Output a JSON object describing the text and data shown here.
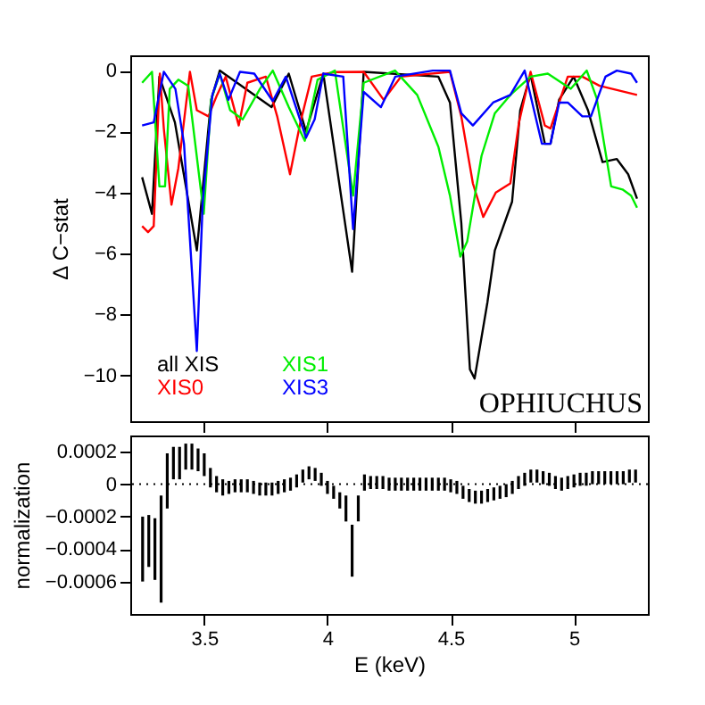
{
  "chart_data": [
    {
      "type": "line",
      "ylabel": "Δ C−stat",
      "xlim": [
        3.2,
        5.3
      ],
      "xticks": [
        3.5,
        4,
        4.5,
        5
      ],
      "ylim": [
        -11.5,
        0.5
      ],
      "yticks": [
        0,
        -2,
        -4,
        -6,
        -8,
        -10
      ],
      "tick_labels": "y",
      "grid": false,
      "legend": "bottom left",
      "line_style": "solid",
      "marker": "none",
      "annotations": [
        "OPHIUCHUS"
      ],
      "series": [
        {
          "name": "all XIS",
          "color": "#000000",
          "x": [
            3.248,
            3.288,
            3.318,
            3.381,
            3.47,
            3.528,
            3.563,
            3.773,
            3.843,
            3.913,
            3.983,
            4.1,
            4.147,
            4.45,
            4.497,
            4.543,
            4.578,
            4.597,
            4.649,
            4.679,
            4.749,
            4.782,
            4.824,
            4.882,
            4.905,
            4.94,
            4.999,
            5.057,
            5.116,
            5.174,
            5.22,
            5.256
          ],
          "values": [
            -3.5,
            -4.7,
            -0.2,
            -1.7,
            -5.9,
            -0.96,
            0,
            -1.2,
            -0.1,
            -2.0,
            -0.1,
            -6.6,
            -0.04,
            -0.2,
            -1.05,
            -5.0,
            -9.8,
            -10.1,
            -7.6,
            -5.9,
            -4.3,
            -1.3,
            -0.13,
            -2.4,
            -2.4,
            -0.95,
            -0.2,
            -1.3,
            -3.0,
            -2.9,
            -3.4,
            -4.2
          ]
        },
        {
          "name": "XIS0",
          "color": "#ff0000",
          "x": [
            3.248,
            3.272,
            3.295,
            3.32,
            3.336,
            3.367,
            3.395,
            3.442,
            3.47,
            3.517,
            3.552,
            3.587,
            3.64,
            3.675,
            3.75,
            3.796,
            3.848,
            3.89,
            3.936,
            4.03,
            4.147,
            4.228,
            4.298,
            4.497,
            4.543,
            4.59,
            4.632,
            4.683,
            4.742,
            4.777,
            4.824,
            4.882,
            4.905,
            4.975,
            5.034,
            5.104,
            5.256
          ],
          "values": [
            -5.1,
            -5.3,
            -5.1,
            -0.1,
            -1.9,
            -4.4,
            -3.2,
            -0.04,
            -1.3,
            -1.5,
            -0.8,
            -0.2,
            -1.8,
            -0.4,
            -0.2,
            -1.5,
            -3.4,
            -1.7,
            -0.2,
            -0.05,
            -0.04,
            -0.96,
            -0.2,
            -0.04,
            -1.5,
            -3.7,
            -4.8,
            -4.0,
            -3.7,
            -1.7,
            -0.04,
            -1.8,
            -1.9,
            -0.2,
            -0.2,
            -0.5,
            -0.8
          ]
        },
        {
          "name": "XIS1",
          "color": "#00ee00",
          "x": [
            3.248,
            3.288,
            3.318,
            3.341,
            3.36,
            3.395,
            3.435,
            3.498,
            3.528,
            3.563,
            3.605,
            3.656,
            3.726,
            3.778,
            3.843,
            3.908,
            3.96,
            4.03,
            4.104,
            4.147,
            4.274,
            4.364,
            4.45,
            4.497,
            4.539,
            4.567,
            4.625,
            4.679,
            4.742,
            4.824,
            4.894,
            4.987,
            5.052,
            5.092,
            5.151,
            5.197,
            5.232,
            5.256
          ],
          "values": [
            -0.4,
            -0.04,
            -3.8,
            -3.8,
            -0.6,
            -0.3,
            -0.5,
            -4.7,
            -0.96,
            -0.1,
            -1.3,
            -1.6,
            -0.6,
            0,
            -1.2,
            -2.3,
            -0.3,
            0,
            -4.1,
            -0.4,
            0,
            -0.8,
            -2.5,
            -4.1,
            -6.1,
            -5.6,
            -2.8,
            -1.4,
            -0.8,
            -0.2,
            -0.1,
            -0.6,
            0,
            -0.9,
            -3.8,
            -3.9,
            -4.1,
            -4.5
          ]
        },
        {
          "name": "XIS3",
          "color": "#0000ff",
          "x": [
            3.248,
            3.295,
            3.336,
            3.383,
            3.418,
            3.47,
            3.494,
            3.533,
            3.563,
            3.598,
            3.645,
            3.703,
            3.778,
            3.831,
            3.913,
            3.948,
            3.983,
            4.064,
            4.104,
            4.147,
            4.217,
            4.275,
            4.427,
            4.497,
            4.543,
            4.59,
            4.672,
            4.742,
            4.8,
            4.87,
            4.905,
            4.94,
            4.975,
            5.034,
            5.069,
            5.128,
            5.174,
            5.232,
            5.256
          ],
          "values": [
            -1.8,
            -1.7,
            -0.04,
            -0.6,
            -2.4,
            -9.2,
            -4.3,
            -0.8,
            -0.1,
            -0.96,
            -0.04,
            -0.1,
            -1.0,
            -0.2,
            -2.2,
            -1.6,
            -0.1,
            -0.2,
            -5.2,
            -0.7,
            -1.2,
            -0.2,
            0,
            0,
            -1.4,
            -1.8,
            -1.05,
            -0.8,
            0,
            -2.4,
            -2.4,
            -1.05,
            -1.05,
            -1.5,
            -1.5,
            -0.2,
            0,
            -0.1,
            -0.4
          ]
        }
      ]
    },
    {
      "type": "bar",
      "ylabel": "normalization",
      "xlabel": "E (keV)",
      "xlim": [
        3.2,
        5.3
      ],
      "xticks": [
        3.5,
        4,
        4.5,
        5
      ],
      "ylim": [
        -0.0008,
        0.0003
      ],
      "yticks": [
        0.0002,
        0,
        -0.0002,
        -0.0004,
        -0.0006
      ],
      "grid": false,
      "ref_lines": [
        {
          "axis": "y",
          "value": 0,
          "line_style": "dotted",
          "color": "#000000"
        }
      ],
      "series": [
        {
          "color": "#000000",
          "x": [
            3.25,
            3.275,
            3.3,
            3.325,
            3.35,
            3.375,
            3.4,
            3.425,
            3.45,
            3.475,
            3.5,
            3.525,
            3.55,
            3.575,
            3.6,
            3.625,
            3.65,
            3.675,
            3.7,
            3.725,
            3.75,
            3.775,
            3.8,
            3.825,
            3.85,
            3.875,
            3.9,
            3.925,
            3.95,
            3.975,
            4.0,
            4.025,
            4.05,
            4.075,
            4.1,
            4.125,
            4.15,
            4.175,
            4.2,
            4.225,
            4.25,
            4.275,
            4.3,
            4.325,
            4.35,
            4.375,
            4.4,
            4.425,
            4.45,
            4.475,
            4.5,
            4.525,
            4.55,
            4.575,
            4.6,
            4.625,
            4.65,
            4.675,
            4.7,
            4.725,
            4.75,
            4.775,
            4.8,
            4.825,
            4.85,
            4.875,
            4.9,
            4.925,
            4.95,
            4.975,
            5.0,
            5.025,
            5.05,
            5.075,
            5.1,
            5.125,
            5.15,
            5.175,
            5.2,
            5.225,
            5.25
          ],
          "values": [
            0.0004,
            0.00032,
            0.00038,
            0.00066,
            0.00034,
            0.0002,
            0.0002,
            0.00016,
            0.00016,
            0.00014,
            0.00014,
            0.00012,
            0.0001,
            0.0001,
            8e-05,
            8e-05,
            8e-05,
            8e-05,
            8e-05,
            8e-05,
            8e-05,
            8e-05,
            8e-05,
            8e-05,
            8e-05,
            8e-05,
            8e-05,
            8e-05,
            8e-05,
            8e-05,
            8e-05,
            8e-05,
            0.0001,
            0.00016,
            0.00032,
            0.00016,
            0.0001,
            8e-05,
            8e-05,
            8e-05,
            8e-05,
            8e-05,
            8e-05,
            8e-05,
            8e-05,
            8e-05,
            8e-05,
            8e-05,
            8e-05,
            8e-05,
            8e-05,
            8e-05,
            8e-05,
            8e-05,
            8e-05,
            8e-05,
            8e-05,
            8e-05,
            8e-05,
            8e-05,
            8e-05,
            8e-05,
            8e-05,
            8e-05,
            8e-05,
            8e-05,
            8e-05,
            8e-05,
            8e-05,
            8e-05,
            8e-05,
            8e-05,
            8e-05,
            8e-05,
            8e-05,
            8e-05,
            8e-05,
            8e-05,
            8e-05,
            8e-05,
            8e-05
          ],
          "base": [
            -0.0006,
            -0.00051,
            -0.00059,
            -0.00073,
            -0.00015,
            3e-05,
            3e-05,
            9e-05,
            9e-05,
            8e-05,
            5e-05,
            -2e-05,
            -5e-05,
            -7e-05,
            -6e-05,
            -5e-05,
            -5e-05,
            -5e-05,
            -6e-05,
            -7e-05,
            -7e-05,
            -7e-05,
            -6e-05,
            -5e-05,
            -4e-05,
            -2e-05,
            1e-05,
            3e-05,
            2e-05,
            -1e-05,
            -6e-05,
            -9e-05,
            -0.00015,
            -0.00023,
            -0.00057,
            -0.00023,
            -4e-05,
            -3e-05,
            -3e-05,
            -3e-05,
            -4e-05,
            -4e-05,
            -4e-05,
            -4e-05,
            -4e-05,
            -4e-05,
            -4e-05,
            -4e-05,
            -4e-05,
            -4e-05,
            -5e-05,
            -6e-05,
            -9e-05,
            -0.00011,
            -0.00012,
            -0.00012,
            -0.00011,
            -0.0001,
            -9e-05,
            -8e-05,
            -6e-05,
            -3e-05,
            -1e-05,
            1e-05,
            1e-05,
            0,
            -1e-05,
            -3e-05,
            -4e-05,
            -3e-05,
            -2e-05,
            -1e-05,
            -1e-05,
            0,
            0,
            0,
            0,
            0,
            0,
            1e-05,
            1e-05
          ]
        }
      ]
    }
  ]
}
